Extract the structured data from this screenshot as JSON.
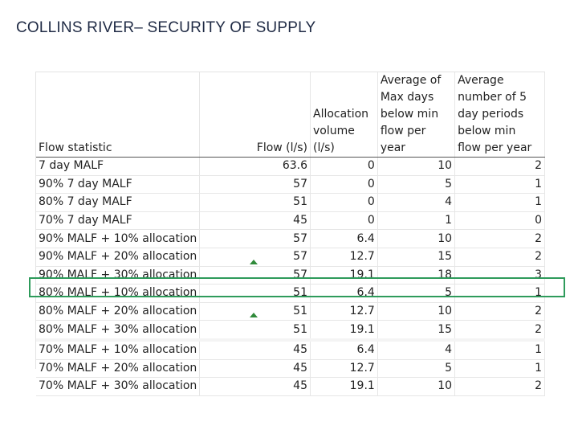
{
  "title": "COLLINS RIVER– SECURITY OF SUPPLY",
  "table": {
    "headers": [
      "Flow statistic",
      "Flow (l/s)",
      "Allocation volume (l/s)",
      "Average of Max days below min flow per year",
      "Average number of 5 day periods below min flow per year"
    ],
    "rows": [
      [
        "7 day MALF",
        "63.6",
        "0",
        "10",
        "2"
      ],
      [
        "90% 7 day MALF",
        "57",
        "0",
        "5",
        "1"
      ],
      [
        "80% 7 day MALF",
        "51",
        "0",
        "4",
        "1"
      ],
      [
        "70% 7 day MALF",
        "45",
        "0",
        "1",
        "0"
      ],
      [
        "90% MALF + 10% allocation",
        "57",
        "6.4",
        "10",
        "2"
      ],
      [
        "90% MALF + 20% allocation",
        "57",
        "12.7",
        "15",
        "2"
      ],
      [
        "90% MALF + 30% allocation",
        "57",
        "19.1",
        "18",
        "3"
      ],
      [
        "80% MALF + 10% allocation",
        "51",
        "6.4",
        "5",
        "1"
      ],
      [
        "80% MALF + 20% allocation",
        "51",
        "12.7",
        "10",
        "2"
      ],
      [
        "80% MALF + 30% allocation",
        "51",
        "19.1",
        "15",
        "2"
      ],
      [
        "70% MALF + 10% allocation",
        "45",
        "6.4",
        "4",
        "1"
      ],
      [
        "70% MALF + 20% allocation",
        "45",
        "12.7",
        "5",
        "1"
      ],
      [
        "70% MALF + 30% allocation",
        "45",
        "19.1",
        "10",
        "2"
      ]
    ],
    "highlighted_row": 8
  },
  "colors": {
    "title": "#1f2a44",
    "highlight": "#2e9b5b",
    "marker": "#2f8a3a"
  }
}
